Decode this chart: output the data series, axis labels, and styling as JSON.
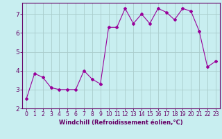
{
  "x": [
    0,
    1,
    2,
    3,
    4,
    5,
    6,
    7,
    8,
    9,
    10,
    11,
    12,
    13,
    14,
    15,
    16,
    17,
    18,
    19,
    20,
    21,
    22,
    23
  ],
  "y": [
    2.5,
    3.85,
    3.65,
    3.1,
    3.0,
    3.0,
    3.0,
    4.0,
    3.55,
    3.3,
    6.3,
    6.3,
    7.3,
    6.5,
    7.0,
    6.5,
    7.3,
    7.1,
    6.7,
    7.3,
    7.15,
    6.1,
    4.2,
    4.5
  ],
  "line_color": "#990099",
  "marker": "D",
  "marker_size": 2,
  "bg_color": "#c8eef0",
  "grid_color": "#aacccc",
  "xlabel": "Windchill (Refroidissement éolien,°C)",
  "xlabel_color": "#660066",
  "tick_color": "#660066",
  "axis_color": "#660066",
  "ylim": [
    2.0,
    7.6
  ],
  "xlim": [
    -0.5,
    23.5
  ],
  "yticks": [
    2,
    3,
    4,
    5,
    6,
    7
  ],
  "xticks": [
    0,
    1,
    2,
    3,
    4,
    5,
    6,
    7,
    8,
    9,
    10,
    11,
    12,
    13,
    14,
    15,
    16,
    17,
    18,
    19,
    20,
    21,
    22,
    23
  ],
  "tick_fontsize": 5.5,
  "ylabel_fontsize": 6.0,
  "xlabel_fontsize": 6.0
}
